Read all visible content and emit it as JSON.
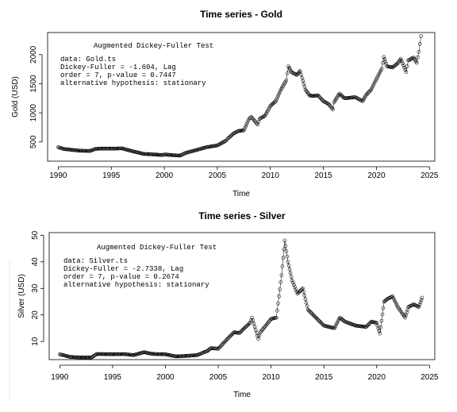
{
  "chart_data": [
    {
      "type": "line",
      "title": "Time series - Gold",
      "xlabel": "Time",
      "ylabel": "Gold (USD)",
      "xlim": [
        1989,
        2025.5
      ],
      "ylim": [
        170,
        2380
      ],
      "xticks": [
        1990,
        1995,
        2000,
        2005,
        2010,
        2015,
        2020,
        2025
      ],
      "yticks": [
        500,
        1000,
        1500,
        2000
      ],
      "grid": false,
      "markers": "open-circle",
      "annotation": {
        "heading": "Augmented Dickey-Fuller Test",
        "lines": [
          "data:  Gold.ts",
          "Dickey-Fuller = -1.604, Lag",
          "order = 7, p-value = 0.7447",
          "alternative hypothesis: stationary"
        ]
      },
      "x": [
        1990,
        1990.5,
        1991,
        1992,
        1993,
        1993.5,
        1994,
        1995,
        1996,
        1997,
        1997.5,
        1998,
        1999,
        1999.8,
        2000,
        2001,
        2001.5,
        2002,
        2003,
        2004,
        2005,
        2005.8,
        2006,
        2006.5,
        2007,
        2007.5,
        2008,
        2008.2,
        2008.8,
        2009,
        2009.5,
        2010,
        2010.5,
        2011,
        2011.5,
        2011.7,
        2012,
        2012.5,
        2012.8,
        2013,
        2013.3,
        2013.7,
        2014,
        2014.5,
        2015,
        2015.5,
        2015.9,
        2016,
        2016.5,
        2017,
        2018,
        2018.7,
        2019,
        2019.5,
        2020,
        2020.5,
        2020.7,
        2021,
        2021.5,
        2022,
        2022.3,
        2022.8,
        2023,
        2023.5,
        2023.8,
        2024,
        2024.2
      ],
      "y": [
        410,
        380,
        370,
        350,
        345,
        380,
        385,
        385,
        390,
        340,
        320,
        295,
        285,
        275,
        285,
        270,
        265,
        310,
        360,
        410,
        440,
        520,
        560,
        640,
        690,
        700,
        900,
        930,
        800,
        900,
        950,
        1120,
        1200,
        1400,
        1560,
        1800,
        1700,
        1650,
        1720,
        1600,
        1400,
        1300,
        1290,
        1300,
        1200,
        1150,
        1060,
        1180,
        1330,
        1250,
        1270,
        1200,
        1300,
        1400,
        1580,
        1760,
        1960,
        1800,
        1780,
        1850,
        1930,
        1700,
        1900,
        1950,
        1860,
        2050,
        2320
      ]
    },
    {
      "type": "line",
      "title": "Time series - Silver",
      "xlabel": "Time",
      "ylabel": "Silver (USD)",
      "xlim": [
        1989,
        2025.5
      ],
      "ylim": [
        3.2,
        51
      ],
      "xticks": [
        1990,
        1995,
        2000,
        2005,
        2010,
        2015,
        2020,
        2025
      ],
      "yticks": [
        10,
        20,
        30,
        40,
        50
      ],
      "grid": false,
      "markers": "open-circle",
      "annotation": {
        "heading": "Augmented Dickey-Fuller Test",
        "lines": [
          "data:  Silver.ts",
          "Dickey-Fuller = -2.7338, Lag",
          "order = 7, p-value = 0.2674",
          "alternative hypothesis: stationary"
        ]
      },
      "x": [
        1990,
        1991,
        1992,
        1993,
        1993.5,
        1994,
        1995,
        1996,
        1997,
        1998,
        1998.5,
        1999,
        2000,
        2001,
        2002,
        2003,
        2004,
        2004.3,
        2005,
        2006,
        2006.5,
        2007,
        2008,
        2008.2,
        2008.8,
        2009,
        2010,
        2010.5,
        2011,
        2011.3,
        2011.6,
        2012,
        2012.5,
        2013,
        2013.5,
        2014,
        2015,
        2016,
        2016.5,
        2017,
        2018,
        2019,
        2019.5,
        2020,
        2020.3,
        2020.7,
        2021,
        2021.5,
        2022,
        2022.7,
        2023,
        2023.5,
        2024,
        2024.3
      ],
      "y": [
        5.2,
        4.2,
        4,
        4,
        5.3,
        5.3,
        5.2,
        5.3,
        4.9,
        6,
        5.5,
        5.3,
        5.2,
        4.4,
        4.6,
        4.9,
        6.5,
        7.5,
        7.3,
        11.5,
        13.5,
        13.2,
        17,
        19,
        11,
        13.5,
        18.5,
        19,
        35,
        48,
        40,
        33,
        28,
        30,
        22,
        20,
        16,
        15,
        19,
        17.5,
        16,
        15.5,
        17.5,
        17,
        13,
        25,
        26,
        27,
        23,
        19,
        23,
        24,
        23,
        26.5
      ]
    }
  ]
}
